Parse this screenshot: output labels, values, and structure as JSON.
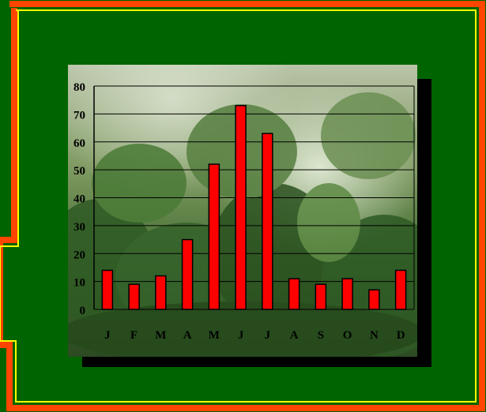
{
  "colors": {
    "background": "#006400",
    "frame_outer": "#ff4500",
    "frame_inner": "#ffff00",
    "bar_fill": "#ff0000",
    "bar_stroke": "#000000",
    "grid": "#000000"
  },
  "background_image": "coffee-plantation-photo",
  "chart_data": {
    "type": "bar",
    "title": "",
    "xlabel": "",
    "ylabel": "",
    "categories": [
      "J",
      "F",
      "M",
      "A",
      "M",
      "J",
      "J",
      "A",
      "S",
      "O",
      "N",
      "D"
    ],
    "values": [
      14,
      9,
      12,
      25,
      52,
      73,
      63,
      11,
      9,
      11,
      7,
      14
    ],
    "ylim": [
      0,
      80
    ],
    "yticks": [
      "0",
      "10",
      "20",
      "30",
      "40",
      "50",
      "60",
      "70",
      "80"
    ],
    "grid": true,
    "legend": "none"
  }
}
